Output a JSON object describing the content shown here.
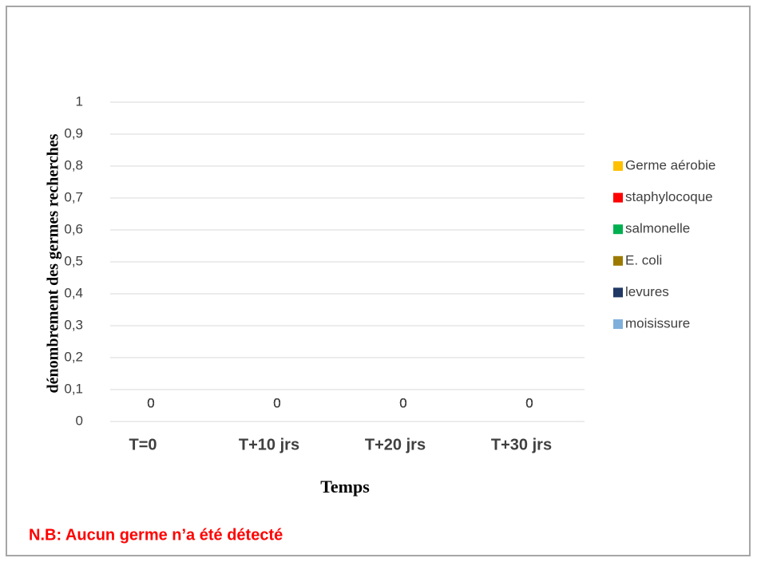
{
  "chart_data": {
    "type": "bar",
    "y_label": "dénombrement des germes recherches",
    "x_label": "Temps",
    "annotation": "N.B: Aucun germe n’a été détecté",
    "categories": [
      "T=0",
      "T+10 jrs",
      "T+20 jrs",
      "T+30 jrs"
    ],
    "series": [
      {
        "name": "Germe aérobie",
        "color": "#ffc000",
        "values": [
          0,
          0,
          0,
          0
        ]
      },
      {
        "name": "staphylocoque",
        "color": "#ff0000",
        "values": [
          0,
          0,
          0,
          0
        ]
      },
      {
        "name": "salmonelle",
        "color": "#00b050",
        "values": [
          0,
          0,
          0,
          0
        ]
      },
      {
        "name": "E. coli",
        "color": "#9c7a00",
        "values": [
          0,
          0,
          0,
          0
        ]
      },
      {
        "name": "levures",
        "color": "#203864",
        "values": [
          0,
          0,
          0,
          0
        ]
      },
      {
        "name": "moisissure",
        "color": "#7fb0dc",
        "values": [
          0,
          0,
          0,
          0
        ]
      }
    ],
    "ylim": [
      0,
      1
    ],
    "yticks": [
      0,
      {
        "value": 0.1,
        "label": "0,1"
      },
      {
        "value": 0.2,
        "label": "0,2"
      },
      {
        "value": 0.3,
        "label": "0,3"
      },
      {
        "value": 0.4,
        "label": "0,4"
      },
      {
        "value": 0.5,
        "label": "0,5"
      },
      {
        "value": 0.6,
        "label": "0,6"
      },
      {
        "value": 0.7,
        "label": "0,7"
      },
      {
        "value": 0.8,
        "label": "0,8"
      },
      {
        "value": 0.9,
        "label": "0,9"
      },
      1
    ],
    "grid": true,
    "legend": "right",
    "data_labels": true
  }
}
